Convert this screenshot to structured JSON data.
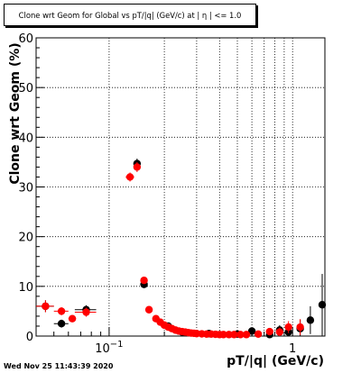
{
  "chart_data": {
    "type": "scatter",
    "title": "Clone wrt Geom for Global vs pT/|q| (GeV/c) at | η | <= 1.0",
    "xlabel": "pT/|q| (GeV/c)",
    "ylabel": "Clone wrt Geom (%)",
    "xscale": "log",
    "xlim": [
      0.04,
      1.5
    ],
    "ylim": [
      0,
      60
    ],
    "grid": true,
    "x_ticks": [
      {
        "value": 0.1,
        "label": "10",
        "exponent": "−1"
      },
      {
        "value": 1,
        "label": "1",
        "exponent": ""
      }
    ],
    "y_ticks": [
      0,
      10,
      20,
      30,
      40,
      50,
      60
    ],
    "series": [
      {
        "color": "#000000",
        "points": [
          {
            "x": 0.045,
            "y": 6.0,
            "xerr": [
              0.04,
              0.05
            ],
            "yerr": 1.2
          },
          {
            "x": 0.055,
            "y": 2.5,
            "xerr": [
              0.05,
              0.06
            ],
            "yerr": 0.8
          },
          {
            "x": 0.075,
            "y": 5.3,
            "xerr": [
              0.065,
              0.085
            ],
            "yerr": 0.9
          },
          {
            "x": 0.142,
            "y": 34.7,
            "xerr": [
              0.137,
              0.147
            ],
            "yerr": 1.0
          },
          {
            "x": 0.155,
            "y": 10.4,
            "xerr": [
              0.15,
              0.16
            ],
            "yerr": 0.7
          },
          {
            "x": 0.21,
            "y": 2.0,
            "yerr": 0.5
          },
          {
            "x": 0.25,
            "y": 0.8,
            "yerr": 0.5
          },
          {
            "x": 0.35,
            "y": 0.5,
            "yerr": 0.5
          },
          {
            "x": 0.5,
            "y": 0.4,
            "yerr": 0.5
          },
          {
            "x": 0.6,
            "y": 1.0,
            "yerr": 0.6
          },
          {
            "x": 0.75,
            "y": 0.3,
            "yerr": 0.6
          },
          {
            "x": 0.85,
            "y": 1.2,
            "yerr": 1.0
          },
          {
            "x": 0.95,
            "y": 0.8,
            "yerr": 1.5
          },
          {
            "x": 1.1,
            "y": 1.5,
            "yerr": 1.8
          },
          {
            "x": 1.25,
            "y": 3.2,
            "yerr": 2.8
          },
          {
            "x": 1.45,
            "y": 6.3,
            "yerr": 6.2
          }
        ]
      },
      {
        "color": "#ff0000",
        "points": [
          {
            "x": 0.045,
            "y": 6.0,
            "xerr": [
              0.04,
              0.05
            ],
            "yerr": 1.2
          },
          {
            "x": 0.055,
            "y": 5.0,
            "xerr": [
              0.05,
              0.06
            ],
            "yerr": 0.8
          },
          {
            "x": 0.063,
            "y": 3.5,
            "xerr": [
              0.06,
              0.066
            ],
            "yerr": 0.6
          },
          {
            "x": 0.075,
            "y": 4.8,
            "xerr": [
              0.065,
              0.085
            ],
            "yerr": 0.9
          },
          {
            "x": 0.13,
            "y": 32.0,
            "xerr": [
              0.123,
              0.137
            ],
            "yerr": 0.9
          },
          {
            "x": 0.142,
            "y": 34.0,
            "xerr": [
              0.137,
              0.147
            ],
            "yerr": 1.0
          },
          {
            "x": 0.155,
            "y": 11.2,
            "xerr": [
              0.15,
              0.16
            ],
            "yerr": 0.6
          },
          {
            "x": 0.165,
            "y": 5.3,
            "yerr": 0.4
          },
          {
            "x": 0.18,
            "y": 3.5,
            "yerr": 0.3
          },
          {
            "x": 0.19,
            "y": 2.8,
            "yerr": 0.3
          },
          {
            "x": 0.2,
            "y": 2.2,
            "yerr": 0.3
          },
          {
            "x": 0.21,
            "y": 1.8,
            "yerr": 0.3
          },
          {
            "x": 0.22,
            "y": 1.5,
            "yerr": 0.3
          },
          {
            "x": 0.23,
            "y": 1.2,
            "yerr": 0.3
          },
          {
            "x": 0.24,
            "y": 1.0,
            "yerr": 0.3
          },
          {
            "x": 0.25,
            "y": 0.9,
            "yerr": 0.3
          },
          {
            "x": 0.26,
            "y": 0.8,
            "yerr": 0.3
          },
          {
            "x": 0.27,
            "y": 0.7,
            "yerr": 0.3
          },
          {
            "x": 0.28,
            "y": 0.6,
            "yerr": 0.3
          },
          {
            "x": 0.29,
            "y": 0.55,
            "yerr": 0.3
          },
          {
            "x": 0.3,
            "y": 0.5,
            "yerr": 0.3
          },
          {
            "x": 0.32,
            "y": 0.45,
            "yerr": 0.3
          },
          {
            "x": 0.34,
            "y": 0.4,
            "yerr": 0.3
          },
          {
            "x": 0.36,
            "y": 0.4,
            "yerr": 0.3
          },
          {
            "x": 0.38,
            "y": 0.35,
            "yerr": 0.3
          },
          {
            "x": 0.4,
            "y": 0.3,
            "yerr": 0.3
          },
          {
            "x": 0.42,
            "y": 0.3,
            "yerr": 0.3
          },
          {
            "x": 0.45,
            "y": 0.3,
            "yerr": 0.3
          },
          {
            "x": 0.48,
            "y": 0.3,
            "yerr": 0.3
          },
          {
            "x": 0.52,
            "y": 0.3,
            "yerr": 0.4
          },
          {
            "x": 0.56,
            "y": 0.3,
            "yerr": 0.4
          },
          {
            "x": 0.65,
            "y": 0.4,
            "yerr": 0.5
          },
          {
            "x": 0.75,
            "y": 0.9,
            "yerr": 0.6
          },
          {
            "x": 0.85,
            "y": 0.8,
            "yerr": 0.9
          },
          {
            "x": 0.95,
            "y": 1.8,
            "yerr": 1.2
          },
          {
            "x": 1.1,
            "y": 1.8,
            "yerr": 1.6
          }
        ]
      }
    ]
  },
  "footer": {
    "timestamp": "Wed Nov 25 11:43:39 2020"
  }
}
